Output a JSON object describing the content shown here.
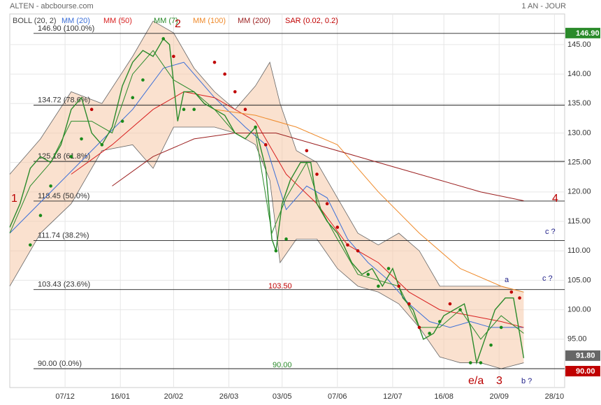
{
  "header": {
    "title": "ALTEN - abcbourse.com",
    "period": "1 AN - JOUR"
  },
  "chart_data": {
    "type": "stock",
    "xlim": [
      0,
      271
    ],
    "xticks": [
      {
        "value": 27,
        "label": "07/12"
      },
      {
        "value": 54,
        "label": "16/01"
      },
      {
        "value": 80,
        "label": "20/02"
      },
      {
        "value": 107,
        "label": "26/03"
      },
      {
        "value": 133,
        "label": "03/05"
      },
      {
        "value": 160,
        "label": "07/06"
      },
      {
        "value": 187,
        "label": "12/07"
      },
      {
        "value": 212,
        "label": "16/08"
      },
      {
        "value": 239,
        "label": "20/09"
      },
      {
        "value": 266,
        "label": "28/10"
      }
    ],
    "ylim": [
      86.8,
      150.2
    ],
    "yticks": [
      {
        "value": 95,
        "label": "95.00"
      },
      {
        "value": 100,
        "label": "100.00"
      },
      {
        "value": 105,
        "label": "105.00"
      },
      {
        "value": 110,
        "label": "110.00"
      },
      {
        "value": 115,
        "label": "115.00"
      },
      {
        "value": 120,
        "label": "120.00"
      },
      {
        "value": 125,
        "label": "125.00"
      },
      {
        "value": 130,
        "label": "130.00"
      },
      {
        "value": 135,
        "label": "135.00"
      },
      {
        "value": 140,
        "label": "140.00"
      },
      {
        "value": 145,
        "label": "145.00"
      }
    ],
    "grid": true,
    "price": {
      "color": "#2a8a2a",
      "x": [
        0,
        5,
        10,
        15,
        20,
        25,
        30,
        35,
        40,
        45,
        50,
        55,
        60,
        65,
        70,
        75,
        78,
        82,
        85,
        90,
        95,
        100,
        105,
        110,
        115,
        120,
        125,
        128,
        130,
        133,
        137,
        142,
        147,
        150,
        155,
        160,
        163,
        167,
        172,
        177,
        182,
        187,
        192,
        197,
        202,
        207,
        212,
        217,
        222,
        225,
        228,
        232,
        237,
        242,
        246,
        249,
        251
      ],
      "values": [
        114,
        118,
        124,
        126,
        125,
        128,
        134,
        136,
        130,
        128,
        131,
        138,
        142,
        144,
        143,
        146,
        145,
        132,
        137,
        137,
        135,
        134,
        133,
        130,
        129,
        131,
        124,
        112,
        110,
        118,
        122,
        125,
        125,
        118,
        115,
        113,
        111,
        108,
        106,
        107,
        104,
        107,
        102,
        100,
        95,
        96,
        99,
        100,
        101,
        97,
        91,
        95,
        100,
        102,
        102,
        96,
        91.8
      ]
    },
    "bollinger": {
      "name": "BOLL (20, 2)",
      "color": "#f6c9a8",
      "x": [
        0,
        15,
        30,
        45,
        60,
        70,
        80,
        90,
        100,
        110,
        120,
        127,
        132,
        140,
        150,
        160,
        170,
        180,
        190,
        200,
        210,
        220,
        230,
        240,
        251
      ],
      "upper": [
        123,
        129,
        137,
        135,
        143,
        149,
        147,
        141,
        137,
        134,
        138,
        142,
        135,
        127,
        125,
        119,
        113,
        111,
        113,
        110,
        104,
        104,
        104,
        104,
        103
      ],
      "lower": [
        104,
        113,
        118,
        127,
        128,
        124,
        131,
        131,
        131,
        130,
        128,
        122,
        108,
        112,
        112,
        107,
        104,
        103,
        101,
        97,
        92,
        91,
        91,
        90,
        91
      ]
    },
    "series": [
      {
        "name": "MM (20)",
        "color": "#3b6fd8",
        "x": [
          0,
          20,
          40,
          60,
          75,
          85,
          100,
          115,
          125,
          135,
          145,
          155,
          165,
          175,
          185,
          195,
          205,
          215,
          225,
          235,
          245,
          251
        ],
        "values": [
          113,
          120,
          127,
          134,
          141,
          142,
          136,
          131,
          128,
          117,
          121,
          119,
          112,
          108,
          105,
          101,
          98,
          97,
          98,
          97,
          97,
          97
        ]
      },
      {
        "name": "MM (50)",
        "color": "#d82020",
        "x": [
          30,
          50,
          70,
          85,
          100,
          120,
          135,
          150,
          165,
          180,
          195,
          210,
          225,
          240,
          251
        ],
        "values": [
          123,
          128,
          134,
          137,
          136,
          132,
          123,
          118,
          111,
          108,
          103,
          100,
          99,
          98,
          97
        ]
      },
      {
        "name": "MM (7)",
        "color": "#2a8a2a",
        "x": [
          0,
          10,
          20,
          30,
          40,
          50,
          60,
          70,
          80,
          90,
          100,
          110,
          120,
          128,
          135,
          145,
          152,
          160,
          170,
          180,
          190,
          200,
          210,
          220,
          230,
          240,
          251
        ],
        "values": [
          113,
          121,
          125,
          132,
          132,
          130,
          140,
          144,
          139,
          137,
          134,
          130,
          130,
          113,
          119,
          125,
          117,
          112,
          106,
          105,
          104,
          97,
          97,
          100,
          95,
          99,
          96
        ]
      },
      {
        "name": "MM (100)",
        "color": "#ef8a2a",
        "x": [
          100,
          120,
          140,
          160,
          180,
          200,
          220,
          240,
          251
        ],
        "values": [
          134,
          133,
          131,
          128,
          120,
          113,
          107,
          104,
          103
        ]
      },
      {
        "name": "MM (200)",
        "color": "#9b1f1f",
        "x": [
          50,
          70,
          90,
          110,
          130,
          150,
          170,
          190,
          210,
          230,
          251
        ],
        "values": [
          121,
          126,
          129,
          130,
          130,
          128,
          126,
          124,
          122,
          120,
          118.5
        ]
      }
    ],
    "sar": {
      "name": "SAR (0.02, 0.2)",
      "color": "#c00000",
      "up_color": "#1a8a1a",
      "x": [
        10,
        15,
        20,
        30,
        35,
        40,
        45,
        55,
        60,
        65,
        75,
        80,
        85,
        90,
        100,
        105,
        110,
        115,
        120,
        125,
        130,
        135,
        145,
        150,
        155,
        160,
        165,
        170,
        175,
        180,
        185,
        190,
        195,
        200,
        205,
        210,
        215,
        220,
        225,
        230,
        235,
        240,
        245,
        249
      ],
      "values": [
        111,
        116,
        121,
        126,
        129,
        134,
        128,
        132,
        136,
        139,
        146,
        143,
        134,
        134,
        142,
        140,
        137,
        134,
        131,
        128,
        110,
        112,
        127,
        123,
        118,
        114,
        111,
        110,
        106,
        104,
        107,
        104,
        101,
        97,
        96,
        98,
        101,
        100,
        91,
        91,
        94,
        97,
        103,
        102
      ]
    },
    "levels": [
      {
        "value": 146.9,
        "label": "146.90  (100.0%)"
      },
      {
        "value": 134.72,
        "label": "134.72  (78.6%)"
      },
      {
        "value": 125.18,
        "label": "125.18  (61.8%)"
      },
      {
        "value": 118.45,
        "label": "118.45  (50.0%)"
      },
      {
        "value": 111.74,
        "label": "111.74  (38.2%)"
      },
      {
        "value": 103.43,
        "label": "103.43  (23.6%)"
      },
      {
        "value": 90,
        "label": "90.00   (0.0%)"
      }
    ],
    "tags": [
      {
        "value": 146.9,
        "label": "146.90",
        "color": "#2a8a2a"
      },
      {
        "value": 91.8,
        "label": "91.80",
        "color": "#666666"
      },
      {
        "value": 90,
        "label": "90.00",
        "color": "#c00000"
      }
    ],
    "annotations": [
      "1",
      "2",
      "3",
      "4",
      "e/a",
      "a",
      "b ?",
      "c ?",
      "c ?",
      "103.50",
      "90.00"
    ]
  }
}
